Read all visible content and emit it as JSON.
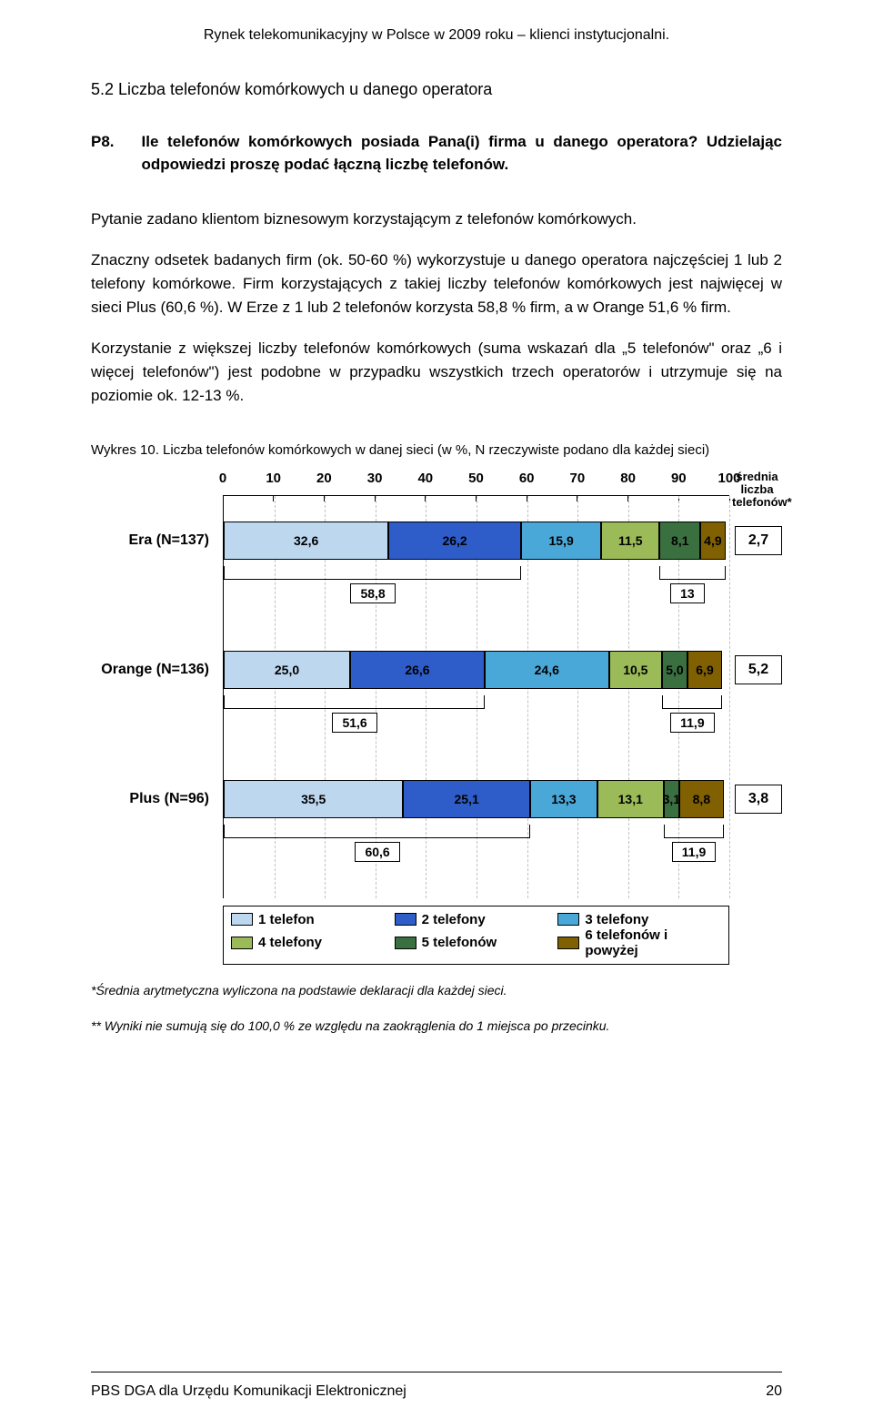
{
  "header_title": "Rynek telekomunikacyjny w Polsce w 2009 roku – klienci instytucjonalni.",
  "section_heading": "5.2   Liczba telefonów komórkowych u danego operatora",
  "question": {
    "num": "P8.",
    "text": "Ile telefonów komórkowych posiada Pana(i) firma u danego operatora? Udzielając odpowiedzi proszę podać łączną liczbę telefonów."
  },
  "para1": "Pytanie zadano klientom biznesowym korzystającym z telefonów komórkowych.",
  "para2": "Znaczny odsetek badanych firm (ok. 50-60 %) wykorzystuje u danego operatora najczęściej 1 lub 2 telefony komórkowe. Firm korzystających z takiej liczby telefonów komórkowych jest najwięcej w sieci Plus (60,6 %). W Erze z 1 lub 2 telefonów korzysta 58,8 % firm, a w Orange 51,6 % firm.",
  "para3": "Korzystanie z większej liczby telefonów komórkowych (suma wskazań dla „5 telefonów\" oraz „6 i więcej telefonów\") jest podobne w przypadku wszystkich trzech operatorów i utrzymuje się na poziomie ok. 12-13 %.",
  "chart_caption": "Wykres 10. Liczba telefonów komórkowych w danej sieci (w  %, N rzeczywiste podano dla każdej sieci)",
  "chart": {
    "xticks": [
      0,
      10,
      20,
      30,
      40,
      50,
      60,
      70,
      80,
      90,
      100
    ],
    "side_header": "średnia\nliczba\ntelefonów*",
    "colors": {
      "c1": "#bdd7ee",
      "c2": "#2e5cc8",
      "c3": "#4aa8d8",
      "c4": "#9bbb59",
      "c5": "#3a7040",
      "c6": "#806000"
    },
    "rows": [
      {
        "label": "Era (N=137)",
        "segments": [
          {
            "v": "32,6",
            "w": 32.6,
            "c": "c1"
          },
          {
            "v": "26,2",
            "w": 26.2,
            "c": "c2",
            "tc": "#000"
          },
          {
            "v": "15,9",
            "w": 15.9,
            "c": "c3"
          },
          {
            "v": "11,5",
            "w": 11.5,
            "c": "c4"
          },
          {
            "v": "8,1",
            "w": 8.1,
            "c": "c5",
            "tc": "#000"
          },
          {
            "v": "4,9",
            "w": 4.9,
            "c": "c6",
            "tc": "#000"
          }
        ],
        "avg": "2,7",
        "bracketA": {
          "label": "58,8",
          "from": 0,
          "to": 58.8
        },
        "bracketB": {
          "label": "13",
          "from": 86.1,
          "to": 99.2
        }
      },
      {
        "label": "Orange (N=136)",
        "segments": [
          {
            "v": "25,0",
            "w": 25.0,
            "c": "c1"
          },
          {
            "v": "26,6",
            "w": 26.6,
            "c": "c2",
            "tc": "#000"
          },
          {
            "v": "24,6",
            "w": 24.6,
            "c": "c3"
          },
          {
            "v": "10,5",
            "w": 10.5,
            "c": "c4"
          },
          {
            "v": "5,0",
            "w": 5.0,
            "c": "c5",
            "tc": "#000"
          },
          {
            "v": "6,9",
            "w": 6.9,
            "c": "c6",
            "tc": "#000"
          }
        ],
        "avg": "5,2",
        "bracketA": {
          "label": "51,6",
          "from": 0,
          "to": 51.6
        },
        "bracketB": {
          "label": "11,9",
          "from": 86.7,
          "to": 98.6
        }
      },
      {
        "label": "Plus (N=96)",
        "segments": [
          {
            "v": "35,5",
            "w": 35.5,
            "c": "c1"
          },
          {
            "v": "25,1",
            "w": 25.1,
            "c": "c2",
            "tc": "#000"
          },
          {
            "v": "13,3",
            "w": 13.3,
            "c": "c3"
          },
          {
            "v": "13,1",
            "w": 13.1,
            "c": "c4"
          },
          {
            "v": "3,1",
            "w": 3.1,
            "c": "c5",
            "tc": "#000"
          },
          {
            "v": "8,8",
            "w": 8.8,
            "c": "c6",
            "tc": "#000"
          }
        ],
        "avg": "3,8",
        "bracketA": {
          "label": "60,6",
          "from": 0,
          "to": 60.6
        },
        "bracketB": {
          "label": "11,9",
          "from": 87.0,
          "to": 98.9
        }
      }
    ],
    "legend": [
      {
        "c": "c1",
        "t": "1 telefon"
      },
      {
        "c": "c2",
        "t": "2 telefony"
      },
      {
        "c": "c3",
        "t": "3 telefony"
      },
      {
        "c": "c4",
        "t": "4 telefony"
      },
      {
        "c": "c5",
        "t": "5 telefonów"
      },
      {
        "c": "c6",
        "t": "6 telefonów i powyżej"
      }
    ]
  },
  "footnote1": "*Średnia arytmetyczna wyliczona na podstawie deklaracji dla każdej sieci.",
  "footnote2": "** Wyniki nie sumują się do 100,0 % ze względu na zaokrąglenia do 1 miejsca po przecinku.",
  "footer": "PBS DGA dla Urzędu Komunikacji Elektronicznej",
  "page_num": "20"
}
